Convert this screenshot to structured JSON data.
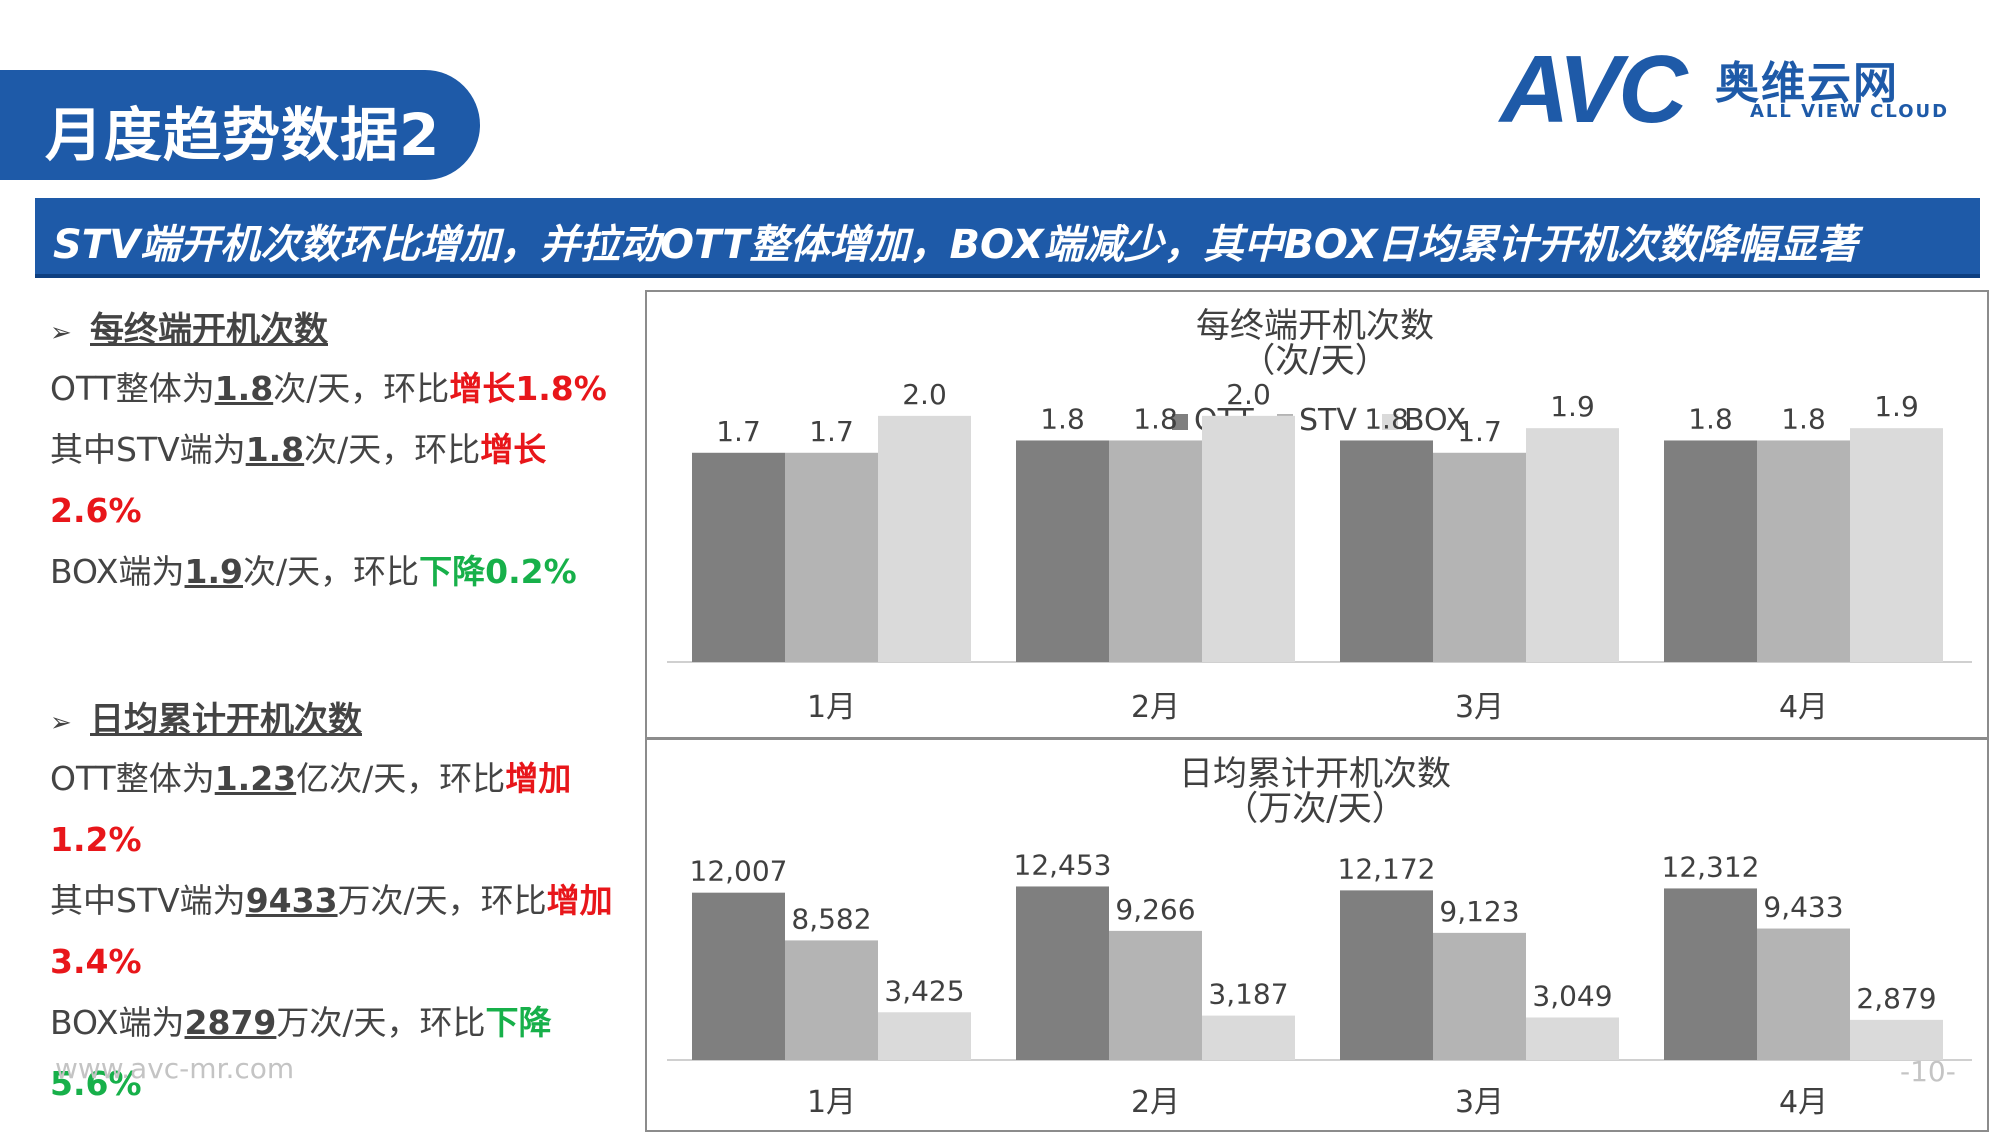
{
  "header": {
    "title": "月度趋势数据2",
    "logo_mark": "AVC",
    "logo_cn": "奥维云网",
    "logo_en": "ALL VIEW CLOUD"
  },
  "banner": {
    "text": "STV端开机次数环比增加，并拉动OTT整体增加，BOX端减少，其中BOX日均累计开机次数降幅显著"
  },
  "left": {
    "section1": {
      "heading": "每终端开机次数",
      "lines": [
        {
          "pre": "OTT整体为",
          "val": "1.8",
          "unit": "次/天，环比",
          "hl": "增长1.8%",
          "tone": "red"
        },
        {
          "pre": "其中STV端为",
          "val": "1.8",
          "unit": "次/天，环比",
          "hl": "增长",
          "tone": "red"
        },
        {
          "pre": "",
          "val": "",
          "unit": "",
          "hl": "2.6%",
          "tone": "red"
        },
        {
          "pre": "BOX端为",
          "val": "1.9",
          "unit": "次/天，环比",
          "hl": "下降0.2%",
          "tone": "green"
        }
      ]
    },
    "section2": {
      "heading": "日均累计开机次数",
      "lines": [
        {
          "pre": "OTT整体为",
          "val": "1.23",
          "unit": "亿次/天，环比",
          "hl": "增加",
          "tone": "red"
        },
        {
          "pre": "",
          "val": "",
          "unit": "",
          "hl": "1.2%",
          "tone": "red"
        },
        {
          "pre": "其中STV端为",
          "val": "9433",
          "unit": "万次/天，环比",
          "hl": "增加",
          "tone": "red"
        },
        {
          "pre": "",
          "val": "",
          "unit": "",
          "hl": "3.4%",
          "tone": "red"
        },
        {
          "pre": "BOX端为",
          "val": "2879",
          "unit": "万次/天，环比",
          "hl": "下降",
          "tone": "green"
        },
        {
          "pre": "",
          "val": "",
          "unit": "",
          "hl": "5.6%",
          "tone": "green"
        }
      ]
    }
  },
  "footer": {
    "url": "www.avc-mr.com",
    "page": "-10-"
  },
  "colors": {
    "brand": "#1e5aa8",
    "ott": "#7f7f7f",
    "stv": "#b4b4b4",
    "box": "#dadada",
    "up": "#e8161a",
    "down": "#17b04a"
  },
  "chart_data": [
    {
      "type": "bar",
      "title_line1": "每终端开机次数",
      "title_line2": "（次/天）",
      "categories": [
        "1月",
        "2月",
        "3月",
        "4月"
      ],
      "series": [
        {
          "name": "OTT",
          "values": [
            1.7,
            1.8,
            1.8,
            1.8
          ],
          "labels": [
            "1.7",
            "1.8",
            "1.8",
            "1.8"
          ]
        },
        {
          "name": "STV",
          "values": [
            1.7,
            1.8,
            1.7,
            1.8
          ],
          "labels": [
            "1.7",
            "1.8",
            "1.7",
            "1.8"
          ]
        },
        {
          "name": "BOX",
          "values": [
            2.0,
            2.0,
            1.9,
            1.9
          ],
          "labels": [
            "2.0",
            "2.0",
            "1.9",
            "1.9"
          ]
        }
      ],
      "ylim": [
        0,
        2.6
      ],
      "legend": "top-center",
      "grid": false
    },
    {
      "type": "bar",
      "title_line1": "日均累计开机次数",
      "title_line2": "（万次/天）",
      "categories": [
        "1月",
        "2月",
        "3月",
        "4月"
      ],
      "series": [
        {
          "name": "OTT",
          "values": [
            12007,
            12453,
            12172,
            12312
          ],
          "labels": [
            "12,007",
            "12,453",
            "12,172",
            "12,312"
          ]
        },
        {
          "name": "STV",
          "values": [
            8582,
            9266,
            9123,
            9433
          ],
          "labels": [
            "8,582",
            "9,266",
            "9,123",
            "9,433"
          ]
        },
        {
          "name": "BOX",
          "values": [
            3425,
            3187,
            3049,
            2879
          ],
          "labels": [
            "3,425",
            "3,187",
            "3,049",
            "2,879"
          ]
        }
      ],
      "ylim": [
        0,
        15500
      ],
      "legend": "none",
      "grid": false
    }
  ]
}
